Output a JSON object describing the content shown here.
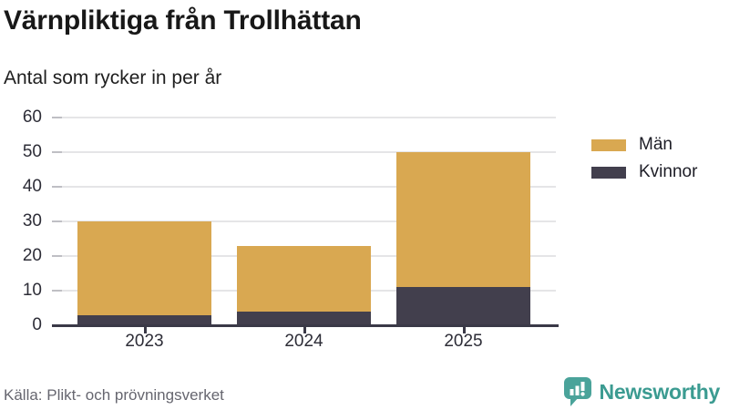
{
  "header": {
    "title": "Värnpliktiga från Trollhättan",
    "subtitle": "Antal som rycker in per år"
  },
  "legend": {
    "items": [
      {
        "label": "Män",
        "color": "#d9a851"
      },
      {
        "label": "Kvinnor",
        "color": "#423f4d"
      }
    ]
  },
  "footer": {
    "source": "Källa: Plikt- och prövningsverket",
    "brand": "Newsworthy",
    "logo_icon": "bar-chart-speech-bubble-icon"
  },
  "colors": {
    "men": "#d9a851",
    "women": "#423f4d",
    "axis": "#3a3947",
    "gridline": "#e5e5e7",
    "brand_teal": "#3b9b91",
    "source_gray": "#66666f"
  },
  "chart_data": {
    "type": "bar",
    "stacked": true,
    "title": "Värnpliktiga från Trollhättan",
    "subtitle": "Antal som rycker in per år",
    "categories": [
      "2023",
      "2024",
      "2025"
    ],
    "series": [
      {
        "name": "Män",
        "color": "#d9a851",
        "values": [
          27,
          19,
          39
        ]
      },
      {
        "name": "Kvinnor",
        "color": "#423f4d",
        "values": [
          3,
          4,
          11
        ]
      }
    ],
    "stack_bottom_to_top": [
      "Kvinnor",
      "Män"
    ],
    "totals": [
      30,
      23,
      50
    ],
    "xlabel": "",
    "ylabel": "",
    "ylim": [
      0,
      60
    ],
    "yticks": [
      0,
      10,
      20,
      30,
      40,
      50,
      60
    ],
    "grid": true,
    "legend_position": "right"
  }
}
